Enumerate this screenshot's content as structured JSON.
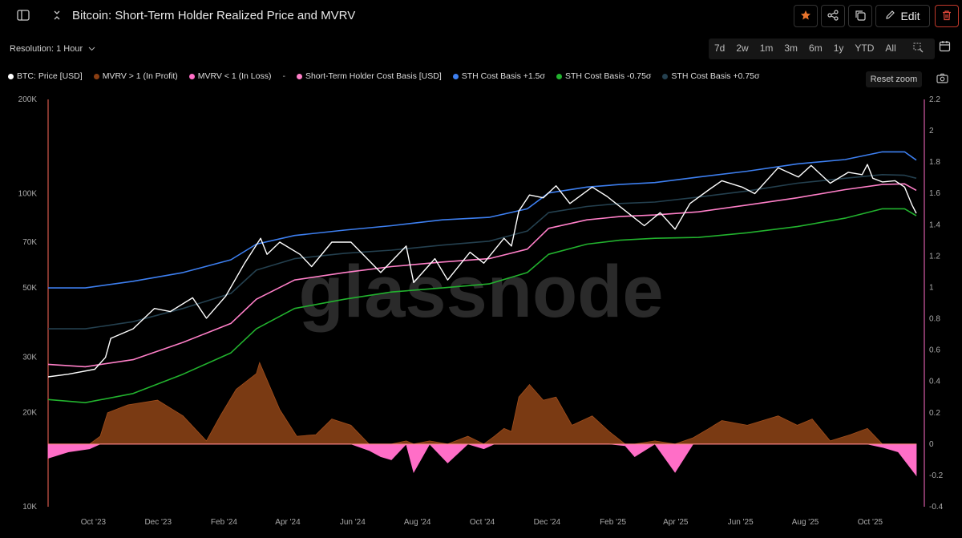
{
  "header": {
    "title": "Bitcoin: Short-Term Holder Realized Price and MVRV",
    "edit_label": "Edit"
  },
  "toolbar": {
    "resolution_label": "Resolution: 1 Hour",
    "ranges": [
      "7d",
      "2w",
      "1m",
      "3m",
      "6m",
      "1y",
      "YTD",
      "All"
    ],
    "reset_zoom": "Reset zoom"
  },
  "legend": [
    {
      "label": "BTC: Price [USD]",
      "color": "#ffffff"
    },
    {
      "label": "MVRV > 1 (In Profit)",
      "color": "#8a3e12"
    },
    {
      "label": "MVRV < 1 (In Loss)",
      "color": "#ff6ec7"
    },
    {
      "label": "Short-Term Holder Cost Basis [USD]",
      "color": "#ff7fc8"
    },
    {
      "label": "STH Cost Basis +1.5σ",
      "color": "#3d7ff0"
    },
    {
      "label": "STH Cost Basis -0.75σ",
      "color": "#22b22e"
    },
    {
      "label": "STH Cost Basis +0.75σ",
      "color": "#24404f"
    }
  ],
  "watermark": "glassnode",
  "chart_data": {
    "type": "line",
    "scale_left": "log",
    "left_ticks": [
      {
        "value": 10000,
        "label": "10K"
      },
      {
        "value": 20000,
        "label": "20K"
      },
      {
        "value": 30000,
        "label": "30K"
      },
      {
        "value": 50000,
        "label": "50K"
      },
      {
        "value": 70000,
        "label": "70K"
      },
      {
        "value": 100000,
        "label": "100K"
      },
      {
        "value": 200000,
        "label": "200K"
      }
    ],
    "right_ticks": [
      -0.4,
      -0.2,
      0,
      0.2,
      0.4,
      0.6,
      0.8,
      1,
      1.2,
      1.4,
      1.6,
      1.8,
      2,
      2.2
    ],
    "right_ylim": [
      -0.4,
      2.2
    ],
    "left_ylim": [
      10000,
      200000
    ],
    "x_labels": [
      "Oct '23",
      "Dec '23",
      "Feb '24",
      "Apr '24",
      "Jun '24",
      "Aug '24",
      "Oct '24",
      "Dec '24",
      "Feb '25",
      "Apr '25",
      "Jun '25",
      "Aug '25",
      "Oct '25"
    ],
    "x_range": [
      "2023-08-27",
      "2025-11-21"
    ],
    "series": [
      {
        "name": "STH Cost Basis +1.5σ",
        "color": "#3d7ff0",
        "axis": "left",
        "x": [
          "2023-08-27",
          "2023-10-01",
          "2023-11-15",
          "2024-01-01",
          "2024-02-15",
          "2024-03-10",
          "2024-04-15",
          "2024-06-01",
          "2024-07-15",
          "2024-09-01",
          "2024-10-15",
          "2024-11-20",
          "2024-12-10",
          "2025-01-15",
          "2025-02-15",
          "2025-03-20",
          "2025-04-30",
          "2025-06-15",
          "2025-08-01",
          "2025-09-15",
          "2025-10-20",
          "2025-11-10",
          "2025-11-21"
        ],
        "y": [
          50000,
          50000,
          52500,
          56000,
          61500,
          69000,
          73500,
          76500,
          79000,
          82500,
          84000,
          89500,
          100500,
          105000,
          107000,
          108500,
          113000,
          118000,
          124500,
          128500,
          136000,
          136000,
          128000
        ]
      },
      {
        "name": "STH Cost Basis +0.75σ",
        "color": "#24404f",
        "axis": "left",
        "x": [
          "2023-08-27",
          "2023-10-01",
          "2023-11-15",
          "2024-01-01",
          "2024-02-15",
          "2024-03-10",
          "2024-04-15",
          "2024-06-01",
          "2024-07-15",
          "2024-09-01",
          "2024-10-15",
          "2024-11-20",
          "2024-12-10",
          "2025-01-15",
          "2025-02-15",
          "2025-03-20",
          "2025-04-30",
          "2025-06-15",
          "2025-08-01",
          "2025-09-15",
          "2025-10-20",
          "2025-11-10",
          "2025-11-21"
        ],
        "y": [
          37000,
          37000,
          39000,
          43000,
          48000,
          57000,
          62000,
          64500,
          66000,
          68500,
          70500,
          76000,
          87000,
          91000,
          93000,
          94000,
          97500,
          102000,
          108000,
          112000,
          115000,
          114500,
          112000
        ]
      },
      {
        "name": "Short-Term Holder Cost Basis [USD]",
        "color": "#ff7fc8",
        "axis": "left",
        "x": [
          "2023-08-27",
          "2023-10-01",
          "2023-11-15",
          "2024-01-01",
          "2024-02-15",
          "2024-03-10",
          "2024-04-15",
          "2024-06-01",
          "2024-07-15",
          "2024-09-01",
          "2024-10-15",
          "2024-11-20",
          "2024-12-10",
          "2025-01-15",
          "2025-02-15",
          "2025-03-20",
          "2025-04-30",
          "2025-06-15",
          "2025-08-01",
          "2025-09-15",
          "2025-10-20",
          "2025-11-10",
          "2025-11-21"
        ],
        "y": [
          28500,
          28000,
          29500,
          33500,
          38500,
          46000,
          53000,
          56000,
          58500,
          60500,
          62000,
          66500,
          77500,
          82500,
          84500,
          85500,
          87500,
          92000,
          97000,
          103000,
          107000,
          107500,
          102500
        ]
      },
      {
        "name": "STH Cost Basis -0.75σ",
        "color": "#22b22e",
        "axis": "left",
        "x": [
          "2023-08-27",
          "2023-10-01",
          "2023-11-15",
          "2024-01-01",
          "2024-02-15",
          "2024-03-10",
          "2024-04-15",
          "2024-06-01",
          "2024-07-15",
          "2024-09-01",
          "2024-10-15",
          "2024-11-20",
          "2024-12-10",
          "2025-01-15",
          "2025-02-15",
          "2025-03-20",
          "2025-04-30",
          "2025-06-15",
          "2025-08-01",
          "2025-09-15",
          "2025-10-20",
          "2025-11-10",
          "2025-11-21"
        ],
        "y": [
          22000,
          21500,
          23000,
          26500,
          31000,
          37000,
          43000,
          46000,
          48500,
          50000,
          51500,
          56000,
          64000,
          69000,
          71000,
          72000,
          72500,
          75000,
          78500,
          83500,
          89500,
          89500,
          85000
        ]
      },
      {
        "name": "BTC: Price [USD]",
        "color": "#ffffff",
        "axis": "left",
        "x": [
          "2023-08-27",
          "2023-09-15",
          "2023-10-10",
          "2023-10-20",
          "2023-10-25",
          "2023-11-15",
          "2023-12-05",
          "2023-12-20",
          "2024-01-10",
          "2024-01-23",
          "2024-02-10",
          "2024-02-28",
          "2024-03-14",
          "2024-03-20",
          "2024-04-01",
          "2024-04-20",
          "2024-05-01",
          "2024-05-20",
          "2024-06-07",
          "2024-07-05",
          "2024-07-29",
          "2024-08-05",
          "2024-08-25",
          "2024-09-06",
          "2024-09-27",
          "2024-10-10",
          "2024-10-29",
          "2024-11-05",
          "2024-11-12",
          "2024-11-22",
          "2024-12-05",
          "2024-12-17",
          "2024-12-30",
          "2025-01-20",
          "2025-02-03",
          "2025-02-28",
          "2025-03-10",
          "2025-03-25",
          "2025-04-08",
          "2025-04-22",
          "2025-05-10",
          "2025-05-22",
          "2025-06-10",
          "2025-06-22",
          "2025-07-14",
          "2025-08-02",
          "2025-08-14",
          "2025-09-01",
          "2025-09-18",
          "2025-10-01",
          "2025-10-06",
          "2025-10-11",
          "2025-10-20",
          "2025-11-01",
          "2025-11-10",
          "2025-11-17",
          "2025-11-21"
        ],
        "y": [
          26000,
          26500,
          27500,
          30000,
          34500,
          37000,
          43000,
          42000,
          46500,
          40000,
          47000,
          60000,
          72000,
          64000,
          70000,
          64000,
          58500,
          70000,
          70000,
          56000,
          68000,
          52000,
          62000,
          53000,
          65000,
          60000,
          72000,
          68000,
          88000,
          99000,
          97000,
          106000,
          93000,
          105000,
          98000,
          84000,
          79000,
          87000,
          77000,
          93000,
          103000,
          110000,
          105000,
          100000,
          121000,
          113000,
          123000,
          108000,
          117000,
          115000,
          124000,
          112000,
          109000,
          110000,
          105000,
          92000,
          86500
        ]
      },
      {
        "name": "MVRV",
        "axis": "right",
        "style": "profit-loss-area",
        "x": [
          "2023-08-27",
          "2023-09-15",
          "2023-10-05",
          "2023-10-15",
          "2023-10-22",
          "2023-11-10",
          "2023-12-08",
          "2024-01-01",
          "2024-01-23",
          "2024-02-05",
          "2024-02-20",
          "2024-03-10",
          "2024-03-13",
          "2024-04-01",
          "2024-04-17",
          "2024-05-05",
          "2024-05-20",
          "2024-06-07",
          "2024-06-24",
          "2024-07-05",
          "2024-07-15",
          "2024-07-29",
          "2024-08-05",
          "2024-08-20",
          "2024-09-06",
          "2024-09-25",
          "2024-10-10",
          "2024-10-20",
          "2024-10-29",
          "2024-11-05",
          "2024-11-12",
          "2024-11-22",
          "2024-12-05",
          "2024-12-17",
          "2025-01-01",
          "2025-01-20",
          "2025-02-05",
          "2025-02-20",
          "2025-03-01",
          "2025-03-20",
          "2025-04-08",
          "2025-04-25",
          "2025-05-10",
          "2025-05-22",
          "2025-06-15",
          "2025-07-14",
          "2025-08-01",
          "2025-08-15",
          "2025-09-01",
          "2025-09-20",
          "2025-10-06",
          "2025-10-20",
          "2025-11-04",
          "2025-11-21"
        ],
        "y": [
          -0.09,
          -0.05,
          -0.03,
          0.05,
          0.2,
          0.25,
          0.28,
          0.18,
          0.02,
          0.18,
          0.35,
          0.45,
          0.52,
          0.22,
          0.05,
          0.06,
          0.16,
          0.12,
          -0.04,
          -0.08,
          -0.1,
          0.02,
          -0.18,
          0.02,
          -0.12,
          0.05,
          -0.03,
          0.05,
          0.1,
          0.08,
          0.3,
          0.38,
          0.28,
          0.3,
          0.12,
          0.18,
          0.08,
          -0.01,
          -0.08,
          0.02,
          -0.18,
          0.04,
          0.1,
          0.15,
          0.12,
          0.18,
          0.12,
          0.16,
          0.02,
          0.06,
          0.1,
          -0.02,
          -0.05,
          -0.2
        ]
      }
    ]
  }
}
